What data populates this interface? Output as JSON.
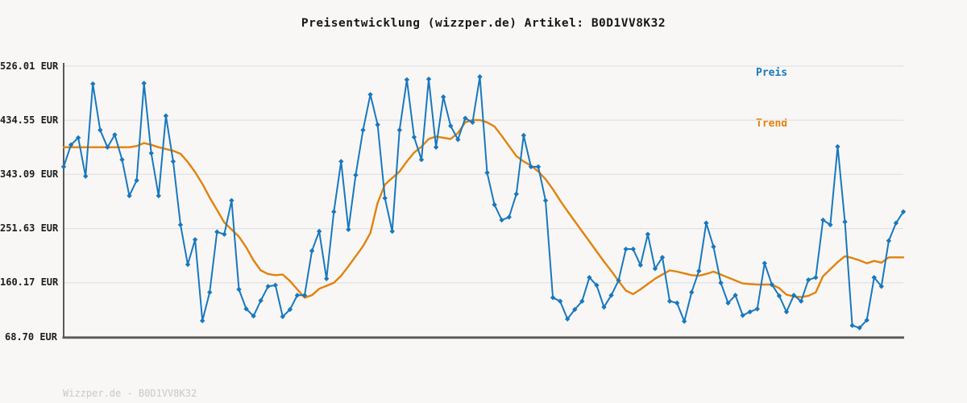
{
  "footer": {
    "watermark": "Wizzper.de - B0D1VV8K32"
  },
  "colors": {
    "background": "#f8f7f5",
    "grid": "#e3e3e3",
    "axis": "#595959",
    "tick_text": "#1c1c1c",
    "title_text": "#171717",
    "footer_text": "#c8c8c8",
    "preis": "#1878be",
    "trend": "#e2820d"
  },
  "chart_data": {
    "type": "line",
    "title": "Preisentwicklung (wizzper.de) Artikel: B0D1VV8K32",
    "xlabel": "",
    "ylabel": "",
    "unit": "EUR",
    "ylim": [
      68.7,
      526.01
    ],
    "grid": "horizontal-only",
    "legend_position": "top-right",
    "x_axis": "time (unlabeled)",
    "yticks": [
      {
        "value": 68.7,
        "label": "68.70 EUR"
      },
      {
        "value": 160.17,
        "label": "160.17 EUR"
      },
      {
        "value": 251.63,
        "label": "251.63 EUR"
      },
      {
        "value": 343.09,
        "label": "343.09 EUR"
      },
      {
        "value": 434.55,
        "label": "434.55 EUR"
      },
      {
        "value": 526.01,
        "label": "526.01 EUR"
      }
    ],
    "series": [
      {
        "name": "Preis",
        "color": "#1878be",
        "marker": "diamond",
        "line_width": 2,
        "values": [
          356,
          393,
          405,
          340,
          496,
          418,
          389,
          410,
          368,
          307,
          333,
          497,
          379,
          307,
          442,
          365,
          258,
          191,
          233,
          96,
          144,
          246,
          242,
          299,
          149,
          116,
          104,
          130,
          154,
          156,
          103,
          115,
          139,
          139,
          214,
          247,
          167,
          280,
          365,
          250,
          342,
          418,
          478,
          427,
          303,
          247,
          418,
          503,
          406,
          368,
          504,
          389,
          474,
          425,
          402,
          438,
          431,
          508,
          346,
          292,
          266,
          271,
          310,
          409,
          356,
          356,
          299,
          135,
          129,
          99,
          115,
          129,
          169,
          156,
          119,
          139,
          164,
          217,
          217,
          190,
          242,
          184,
          203,
          129,
          126,
          95,
          144,
          180,
          261,
          221,
          160,
          126,
          139,
          105,
          111,
          116,
          193,
          157,
          138,
          111,
          139,
          129,
          165,
          169,
          266,
          258,
          390,
          263,
          88,
          84,
          97,
          169,
          154,
          231,
          261,
          280
        ]
      },
      {
        "name": "Trend",
        "color": "#e2820d",
        "marker": "none",
        "line_width": 2.4,
        "values": [
          389,
          389,
          389,
          389,
          389,
          389,
          389,
          389,
          389,
          389,
          391,
          396,
          393,
          389,
          386,
          383,
          378,
          364,
          347,
          327,
          304,
          283,
          262,
          250,
          238,
          220,
          198,
          181,
          175,
          173,
          174,
          163,
          149,
          135,
          139,
          150,
          155,
          160,
          172,
          188,
          205,
          222,
          244,
          295,
          326,
          337,
          348,
          365,
          380,
          390,
          403,
          407,
          405,
          403,
          413,
          431,
          435,
          435,
          431,
          424,
          408,
          391,
          374,
          365,
          358,
          348,
          335,
          318,
          299,
          281,
          264,
          247,
          230,
          213,
          196,
          180,
          163,
          147,
          141,
          149,
          158,
          167,
          174,
          181,
          179,
          176,
          173,
          172,
          175,
          179,
          174,
          169,
          164,
          159,
          158,
          157,
          157,
          157,
          151,
          140,
          137,
          136,
          138,
          144,
          171,
          183,
          195,
          205,
          202,
          198,
          193,
          197,
          194,
          203,
          203,
          203
        ]
      }
    ]
  }
}
